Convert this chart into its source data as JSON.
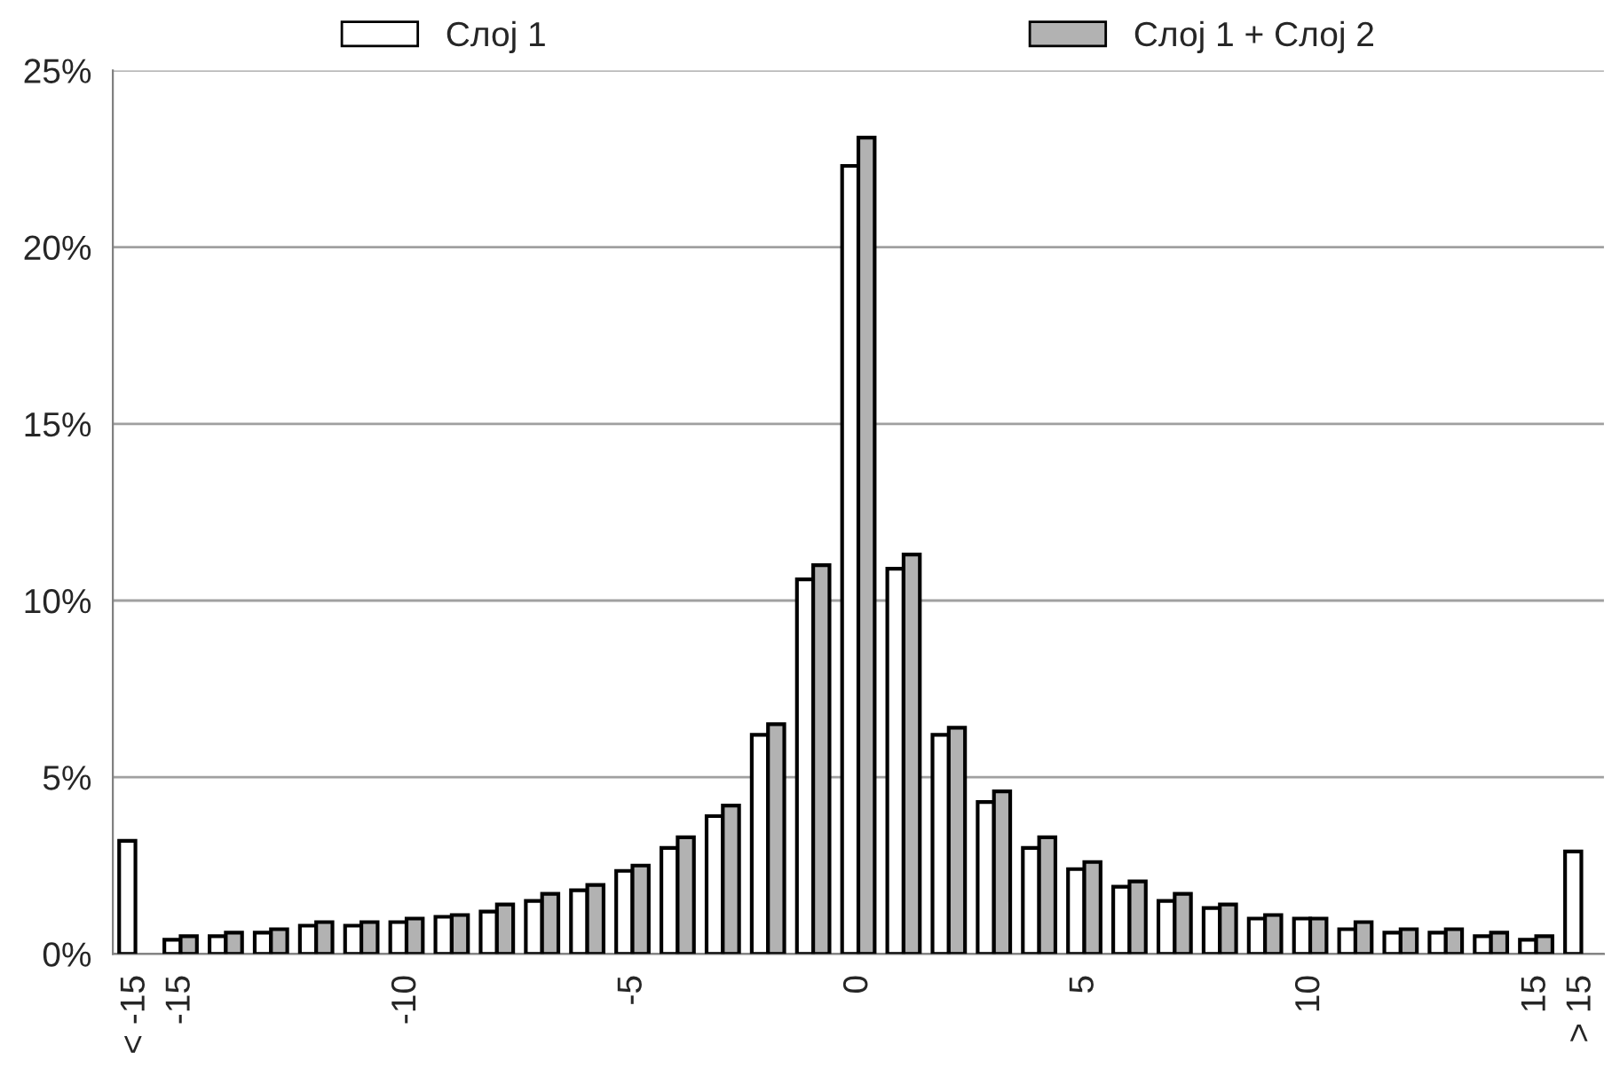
{
  "chart_data": {
    "type": "bar",
    "categories": [
      "< -15",
      "-15",
      null,
      null,
      null,
      null,
      "-10",
      null,
      null,
      null,
      null,
      "-5",
      null,
      null,
      null,
      null,
      "0",
      null,
      null,
      null,
      null,
      "5",
      null,
      null,
      null,
      null,
      "10",
      null,
      null,
      null,
      null,
      "15",
      "> 15"
    ],
    "series": [
      {
        "name": "Слој 1",
        "color": "#ffffff",
        "values": [
          3.2,
          0.4,
          0.5,
          0.6,
          0.8,
          0.8,
          0.9,
          1.05,
          1.2,
          1.5,
          1.8,
          2.35,
          3.0,
          3.9,
          6.2,
          10.6,
          22.3,
          10.9,
          6.2,
          4.3,
          3.0,
          2.4,
          1.9,
          1.5,
          1.3,
          1.0,
          1.0,
          0.7,
          0.6,
          0.6,
          0.5,
          0.4,
          2.9
        ]
      },
      {
        "name": "Слој 1 + Слој 2",
        "color": "#b2b2b2",
        "values": [
          null,
          0.5,
          0.6,
          0.7,
          0.9,
          0.9,
          1.0,
          1.1,
          1.4,
          1.7,
          1.95,
          2.5,
          3.3,
          4.2,
          6.5,
          11.0,
          23.1,
          11.3,
          6.4,
          4.6,
          3.3,
          2.6,
          2.05,
          1.7,
          1.4,
          1.1,
          1.0,
          0.9,
          0.7,
          0.7,
          0.6,
          0.5,
          null
        ]
      }
    ],
    "ylim": [
      0,
      25
    ],
    "yticks": [
      {
        "value": 0,
        "label": "0%"
      },
      {
        "value": 5,
        "label": "5%"
      },
      {
        "value": 10,
        "label": "10%"
      },
      {
        "value": 15,
        "label": "15%"
      },
      {
        "value": 20,
        "label": "20%"
      },
      {
        "value": 25,
        "label": "25%"
      }
    ],
    "grid": "y",
    "legend": "top"
  }
}
